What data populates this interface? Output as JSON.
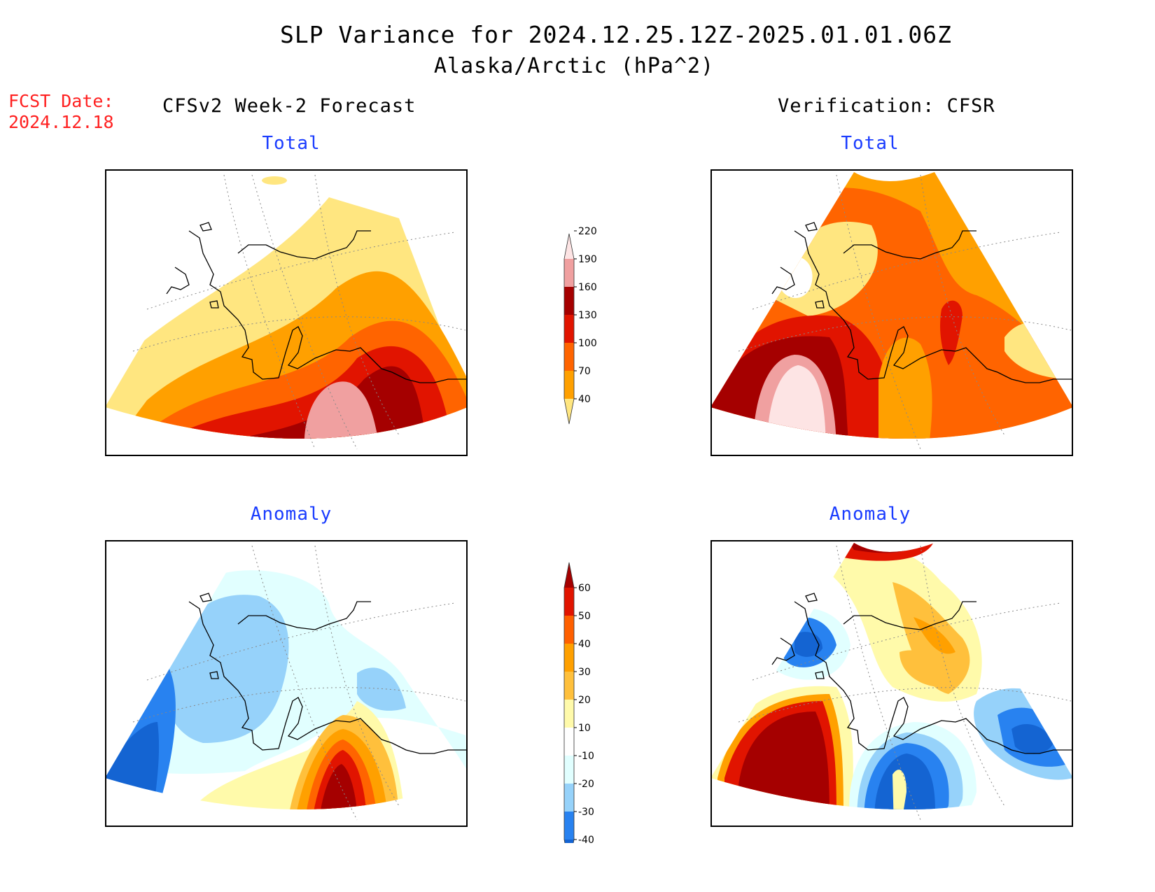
{
  "title": {
    "line1": "SLP Variance for 2024.12.25.12Z-2025.01.01.06Z",
    "line2": "Alaska/Arctic (hPa^2)"
  },
  "fcst": {
    "label": "FCST Date:",
    "date": "2024.12.18"
  },
  "columns": {
    "left": "CFSv2 Week-2 Forecast",
    "right": "Verification: CFSR"
  },
  "panels": {
    "forecast_total": "Total",
    "verif_total": "Total",
    "forecast_anomaly": "Anomaly",
    "verif_anomaly": "Anomaly"
  },
  "colorbars": {
    "total": {
      "levels": [
        "40",
        "70",
        "100",
        "130",
        "160",
        "190",
        "220"
      ],
      "colors": [
        "#ffe680",
        "#ffa000",
        "#ff6400",
        "#e11400",
        "#a50000",
        "#f0a0a0",
        "#fde4e4"
      ]
    },
    "anomaly": {
      "levels": [
        "-40",
        "-30",
        "-20",
        "-10",
        "10",
        "20",
        "30",
        "40",
        "50",
        "60"
      ],
      "colors": [
        "#1464d2",
        "#2882f0",
        "#96d2fa",
        "#e1ffff",
        "#ffffff",
        "#fffaaa",
        "#ffc03c",
        "#ffa000",
        "#ff6000",
        "#e11400",
        "#a50000"
      ]
    }
  }
}
